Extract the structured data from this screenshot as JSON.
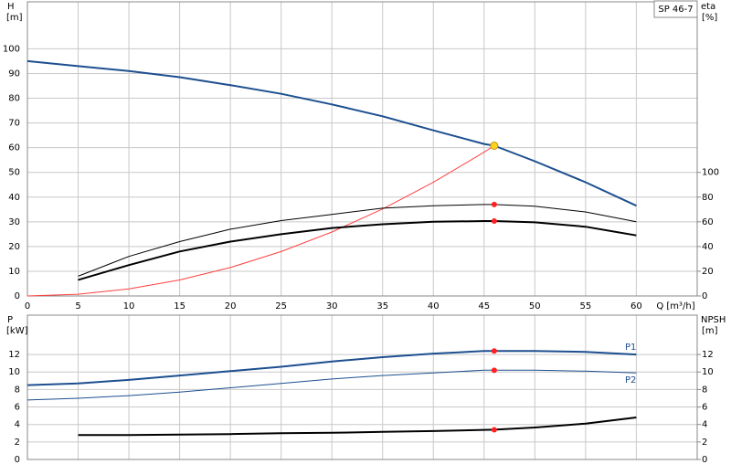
{
  "chart_data": [
    {
      "type": "line",
      "title": "SP 46-7",
      "ylabel": "H",
      "yunit": "[m]",
      "y2label": "eta",
      "y2unit": "[%]",
      "xlabel": "Q [m³/h]",
      "x": [
        0,
        5,
        10,
        15,
        20,
        25,
        30,
        35,
        40,
        45,
        46,
        50,
        55,
        60
      ],
      "xlim": [
        0,
        66
      ],
      "xticks": [
        0,
        5,
        10,
        15,
        20,
        25,
        30,
        35,
        40,
        45,
        50,
        55,
        60
      ],
      "ylim": [
        0,
        119
      ],
      "yticks": [
        0,
        10,
        20,
        30,
        40,
        50,
        60,
        70,
        80,
        90,
        100
      ],
      "y2lim": [
        0,
        238
      ],
      "y2ticks": [
        0,
        20,
        40,
        60,
        80,
        100
      ],
      "grid": true,
      "series": [
        {
          "color": "#1d4f8f",
          "values": [
            95,
            93,
            91,
            88.5,
            85.3,
            81.8,
            77.5,
            72.7,
            67,
            61.5,
            60.8,
            54.5,
            46,
            36.5
          ]
        },
        {
          "color": "#ff4040",
          "values": [
            0,
            0.72,
            2.87,
            6.46,
            11.49,
            17.96,
            25.86,
            35.2,
            45.97,
            58.18,
            60.8,
            null,
            null,
            null
          ]
        },
        {
          "color": "#000000",
          "axis": "y2",
          "values": [
            null,
            16,
            32,
            44,
            54,
            61,
            66,
            71,
            73,
            74,
            74,
            72.6,
            68,
            60
          ]
        },
        {
          "color": "#000000",
          "axis": "y2",
          "values": [
            null,
            13,
            25,
            36,
            44,
            50,
            55,
            58,
            60,
            60.6,
            60.6,
            59.6,
            56,
            49
          ]
        }
      ],
      "markers": [
        {
          "x": 46,
          "y": 60.8,
          "color": "#ffd21f"
        },
        {
          "x": 46,
          "y": 74,
          "axis": "y2",
          "color": "#ff2020"
        },
        {
          "x": 46,
          "y": 60.6,
          "axis": "y2",
          "color": "#ff2020"
        }
      ]
    },
    {
      "type": "line",
      "ylabel": "P",
      "yunit": "[kW]",
      "y2label": "NPSH",
      "y2unit": "[m]",
      "x": [
        0,
        5,
        10,
        15,
        20,
        25,
        30,
        35,
        40,
        45,
        46,
        50,
        55,
        60
      ],
      "xlim": [
        0,
        66
      ],
      "ylim": [
        0,
        16.5
      ],
      "yticks": [
        0,
        2,
        4,
        6,
        8,
        10,
        12
      ],
      "y2lim": [
        0,
        16.5
      ],
      "y2ticks": [
        0,
        2,
        4,
        6,
        8,
        10,
        12
      ],
      "grid": true,
      "series": [
        {
          "name": "P1",
          "color": "#1d4f8f",
          "values": [
            8.5,
            8.7,
            9.1,
            9.6,
            10.1,
            10.6,
            11.2,
            11.7,
            12.1,
            12.4,
            12.4,
            12.4,
            12.3,
            12.0
          ]
        },
        {
          "name": "P2",
          "color": "#1d4f8f",
          "values": [
            6.8,
            7.0,
            7.3,
            7.7,
            8.2,
            8.7,
            9.2,
            9.6,
            9.9,
            10.2,
            10.2,
            10.2,
            10.1,
            9.9
          ]
        },
        {
          "color": "#000000",
          "axis": "y2",
          "values": [
            null,
            2.8,
            2.8,
            2.85,
            2.9,
            3.0,
            3.05,
            3.15,
            3.25,
            3.38,
            3.4,
            3.65,
            4.1,
            4.8
          ]
        }
      ],
      "markers": [
        {
          "x": 46,
          "y": 12.4,
          "color": "#ff2020"
        },
        {
          "x": 46,
          "y": 10.2,
          "color": "#ff2020"
        },
        {
          "x": 46,
          "y": 3.4,
          "axis": "y2",
          "color": "#ff2020"
        }
      ]
    }
  ]
}
